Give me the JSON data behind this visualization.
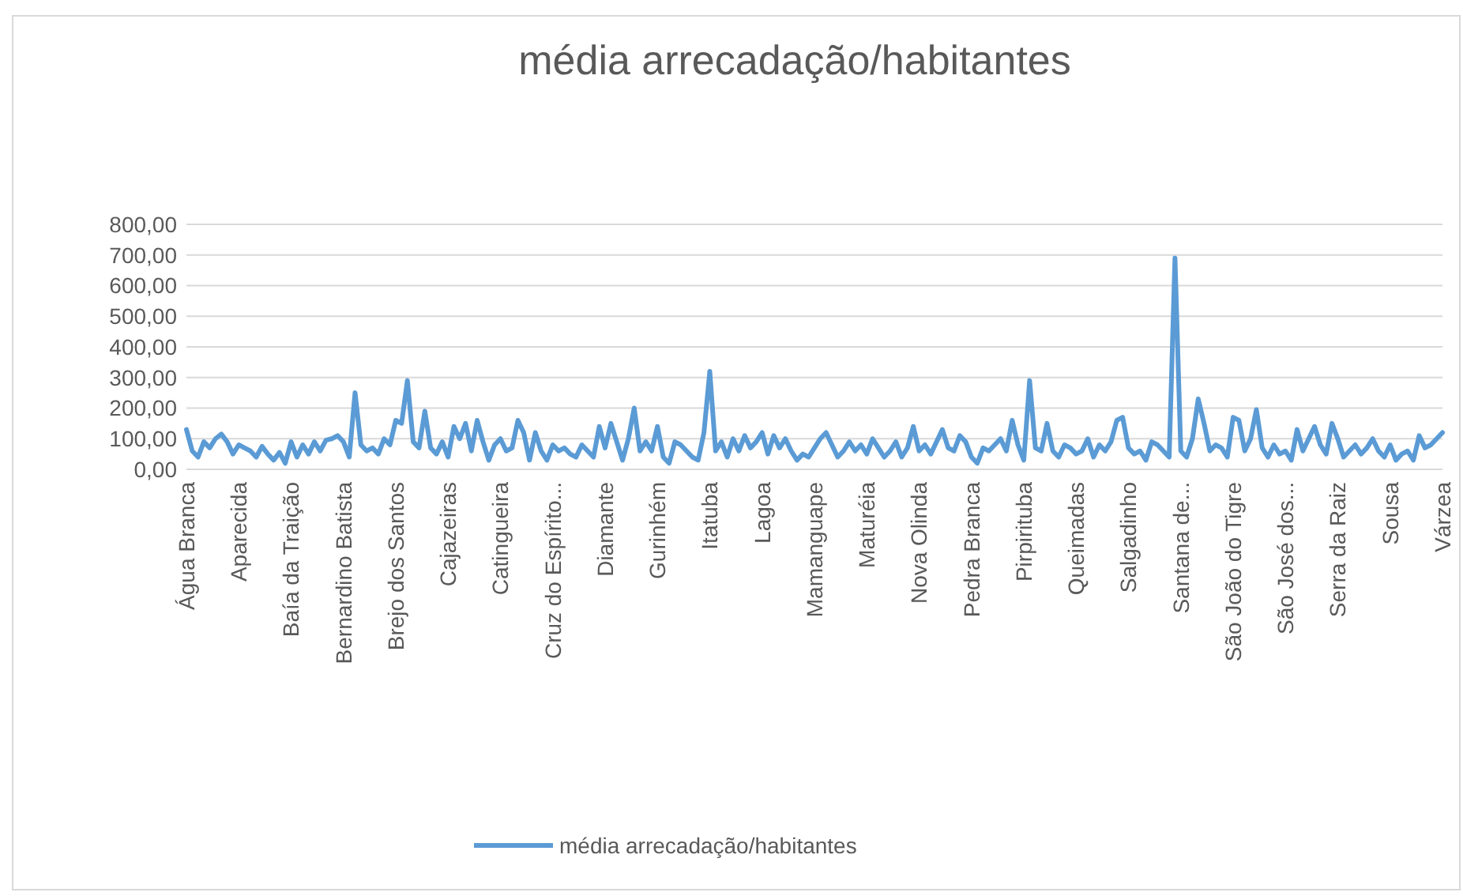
{
  "chart_data": {
    "type": "line",
    "title": "média arrecadação/habitantes",
    "categories": [
      "Água Branca",
      null,
      null,
      null,
      null,
      null,
      null,
      null,
      null,
      "Aparecida",
      null,
      null,
      null,
      null,
      null,
      null,
      null,
      null,
      "Baía da Traição",
      null,
      null,
      null,
      null,
      null,
      null,
      null,
      null,
      "Bernardino Batista",
      null,
      null,
      null,
      null,
      null,
      null,
      null,
      null,
      "Brejo dos Santos",
      null,
      null,
      null,
      null,
      null,
      null,
      null,
      null,
      "Cajazeiras",
      null,
      null,
      null,
      null,
      null,
      null,
      null,
      null,
      "Catingueira",
      null,
      null,
      null,
      null,
      null,
      null,
      null,
      null,
      "Cruz do Espírito...",
      null,
      null,
      null,
      null,
      null,
      null,
      null,
      null,
      "Diamante",
      null,
      null,
      null,
      null,
      null,
      null,
      null,
      null,
      "Gurinhém",
      null,
      null,
      null,
      null,
      null,
      null,
      null,
      null,
      "Itatuba",
      null,
      null,
      null,
      null,
      null,
      null,
      null,
      null,
      "Lagoa",
      null,
      null,
      null,
      null,
      null,
      null,
      null,
      null,
      "Mamanguape",
      null,
      null,
      null,
      null,
      null,
      null,
      null,
      null,
      "Maturéia",
      null,
      null,
      null,
      null,
      null,
      null,
      null,
      null,
      "Nova Olinda",
      null,
      null,
      null,
      null,
      null,
      null,
      null,
      null,
      "Pedra Branca",
      null,
      null,
      null,
      null,
      null,
      null,
      null,
      null,
      "Pirpirituba",
      null,
      null,
      null,
      null,
      null,
      null,
      null,
      null,
      "Queimadas",
      null,
      null,
      null,
      null,
      null,
      null,
      null,
      null,
      "Salgadinho",
      null,
      null,
      null,
      null,
      null,
      null,
      null,
      null,
      "Santana de...",
      null,
      null,
      null,
      null,
      null,
      null,
      null,
      null,
      "São João do Tigre",
      null,
      null,
      null,
      null,
      null,
      null,
      null,
      null,
      "São José dos...",
      null,
      null,
      null,
      null,
      null,
      null,
      null,
      null,
      "Serra da Raiz",
      null,
      null,
      null,
      null,
      null,
      null,
      null,
      null,
      "Sousa",
      null,
      null,
      null,
      null,
      null,
      null,
      null,
      null,
      "Várzea"
    ],
    "series": [
      {
        "name": "média arrecadação/habitantes",
        "color": "#5b9bd5",
        "values": [
          130,
          60,
          40,
          90,
          70,
          100,
          115,
          90,
          50,
          80,
          70,
          60,
          40,
          75,
          50,
          30,
          55,
          20,
          90,
          40,
          80,
          50,
          90,
          60,
          95,
          100,
          110,
          90,
          40,
          250,
          80,
          60,
          70,
          50,
          100,
          80,
          160,
          150,
          290,
          90,
          70,
          190,
          70,
          50,
          90,
          40,
          140,
          100,
          150,
          60,
          160,
          90,
          30,
          80,
          100,
          60,
          70,
          160,
          120,
          30,
          120,
          60,
          30,
          80,
          60,
          70,
          50,
          40,
          80,
          60,
          40,
          140,
          70,
          150,
          90,
          30,
          100,
          200,
          60,
          90,
          60,
          140,
          40,
          20,
          90,
          80,
          60,
          40,
          30,
          120,
          320,
          60,
          90,
          40,
          100,
          60,
          110,
          70,
          90,
          120,
          50,
          110,
          70,
          100,
          60,
          30,
          50,
          40,
          70,
          100,
          120,
          80,
          40,
          60,
          90,
          60,
          80,
          50,
          100,
          70,
          40,
          60,
          90,
          40,
          70,
          140,
          60,
          80,
          50,
          90,
          130,
          70,
          60,
          110,
          90,
          40,
          20,
          70,
          60,
          80,
          100,
          60,
          160,
          80,
          30,
          290,
          70,
          60,
          150,
          60,
          40,
          80,
          70,
          50,
          60,
          100,
          40,
          80,
          60,
          90,
          160,
          170,
          70,
          50,
          60,
          30,
          90,
          80,
          60,
          40,
          690,
          60,
          40,
          100,
          230,
          150,
          60,
          80,
          70,
          40,
          170,
          160,
          60,
          100,
          195,
          70,
          40,
          80,
          50,
          60,
          30,
          130,
          60,
          100,
          140,
          80,
          50,
          150,
          100,
          40,
          60,
          80,
          50,
          70,
          100,
          60,
          40,
          80,
          30,
          50,
          60,
          30,
          110,
          70,
          80,
          100,
          120
        ]
      }
    ],
    "ylim": [
      0,
      800
    ],
    "yticks": [
      {
        "value": 0,
        "label": "0,00"
      },
      {
        "value": 100,
        "label": "100,00"
      },
      {
        "value": 200,
        "label": "200,00"
      },
      {
        "value": 300,
        "label": "300,00"
      },
      {
        "value": 400,
        "label": "400,00"
      },
      {
        "value": 500,
        "label": "500,00"
      },
      {
        "value": 600,
        "label": "600,00"
      },
      {
        "value": 700,
        "label": "700,00"
      },
      {
        "value": 800,
        "label": "800,00"
      }
    ],
    "grid": "y",
    "legend": "bottom",
    "marker": "none",
    "line_style": "solid"
  }
}
